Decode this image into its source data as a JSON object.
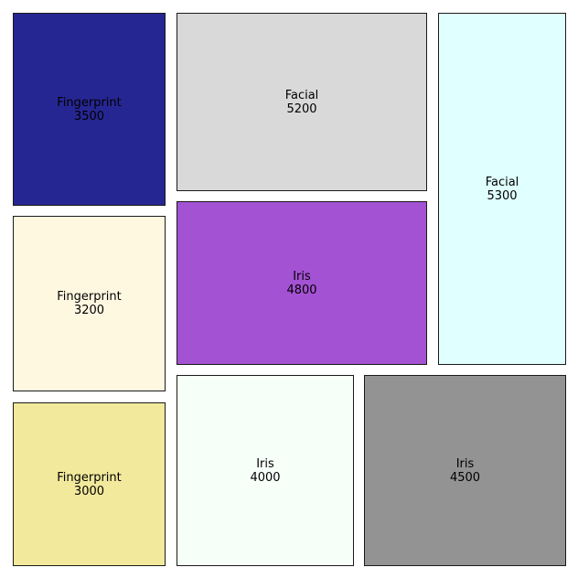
{
  "chart_data": {
    "type": "treemap",
    "title": "",
    "items": [
      {
        "label": "Fingerprint",
        "value": 3500,
        "color": "#262693"
      },
      {
        "label": "Fingerprint",
        "value": 3200,
        "color": "#fff8e1"
      },
      {
        "label": "Fingerprint",
        "value": 3000,
        "color": "#f2e99c"
      },
      {
        "label": "Facial",
        "value": 5200,
        "color": "#d9d9d9"
      },
      {
        "label": "Iris",
        "value": 4800,
        "color": "#a452d4"
      },
      {
        "label": "Facial",
        "value": 5300,
        "color": "#e0ffff"
      },
      {
        "label": "Iris",
        "value": 4000,
        "color": "#f7fff9"
      },
      {
        "label": "Iris",
        "value": 4500,
        "color": "#939393"
      }
    ]
  }
}
